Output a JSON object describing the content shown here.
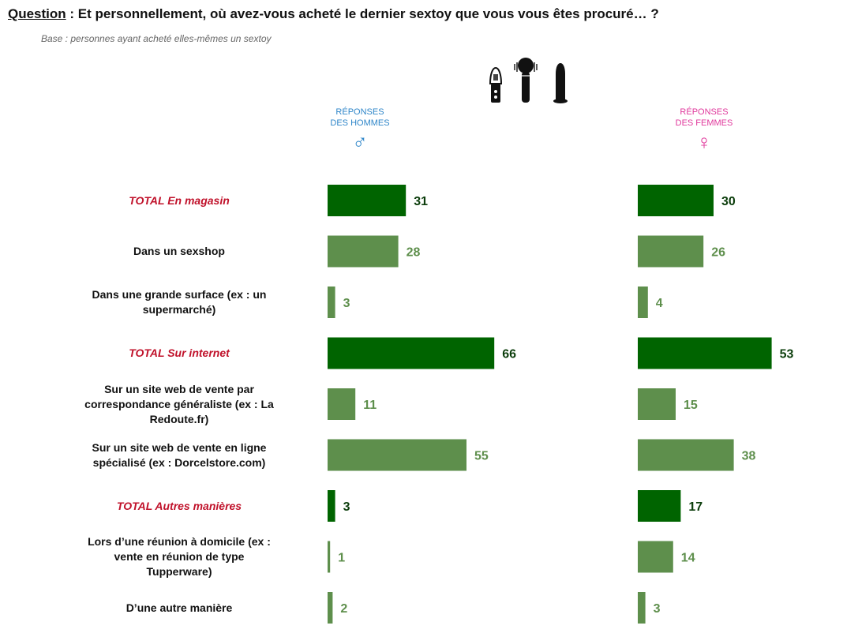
{
  "question": {
    "label": "Question",
    "text": " : Et personnellement, où avez-vous acheté le dernier sextoy que vous vous êtes procuré… ?"
  },
  "base": "Base : personnes ayant acheté elles-mêmes un sextoy",
  "header_men": {
    "line1": "RÉPONSES",
    "line2": "DES HOMMES",
    "symbol": "♂"
  },
  "header_women": {
    "line1": "RÉPONSES",
    "line2": "DES FEMMES",
    "symbol": "♀"
  },
  "icons": [
    "vibrator-icon",
    "wand-massager-icon",
    "dildo-icon"
  ],
  "colors": {
    "total": "#006400",
    "sub": "#5e8f4c",
    "total_label": "#c0112a",
    "men": "#2f86c9",
    "women": "#e0389c"
  },
  "chart_data": {
    "type": "bar",
    "orientation": "horizontal",
    "categories": [
      "TOTAL En magasin",
      "Dans un sexshop",
      "Dans une grande surface (ex : un supermarché)",
      "TOTAL Sur internet",
      "Sur un site web de vente par correspondance généraliste (ex : La Redoute.fr)",
      "Sur un site web de vente en ligne spécialisé (ex : Dorcelstore.com)",
      "TOTAL Autres manières",
      "Lors d’une réunion à domicile (ex : vente en réunion de type Tupperware)",
      "D’une autre manière"
    ],
    "category_lines": [
      [
        "TOTAL En magasin"
      ],
      [
        "Dans un sexshop"
      ],
      [
        "Dans une grande surface (ex : un",
        "supermarché)"
      ],
      [
        "TOTAL Sur internet"
      ],
      [
        "Sur un site web de vente par",
        "correspondance généraliste (ex : La",
        "Redoute.fr)"
      ],
      [
        "Sur un site web de vente en ligne",
        "spécialisé (ex : Dorcelstore.com)"
      ],
      [
        "TOTAL Autres manières"
      ],
      [
        "Lors d’une réunion à domicile (ex :",
        "vente en réunion de type",
        "Tupperware)"
      ],
      [
        "D’une autre manière"
      ]
    ],
    "is_total": [
      true,
      false,
      false,
      true,
      false,
      false,
      true,
      false,
      false
    ],
    "series": [
      {
        "name": "RÉPONSES DES HOMMES",
        "values": [
          31,
          28,
          3,
          66,
          11,
          55,
          3,
          1,
          2
        ]
      },
      {
        "name": "RÉPONSES DES FEMMES",
        "values": [
          30,
          26,
          4,
          53,
          15,
          38,
          17,
          14,
          3
        ]
      }
    ],
    "xlim": [
      0,
      100
    ],
    "grid": false,
    "legend": "none"
  }
}
